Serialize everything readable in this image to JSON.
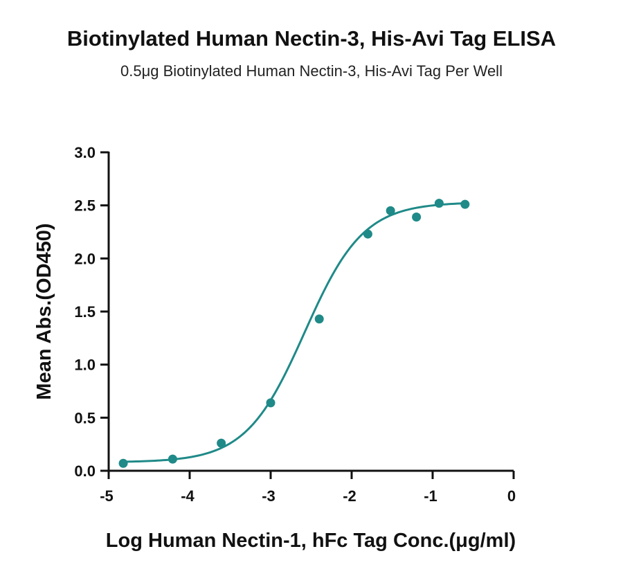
{
  "chart_data": {
    "type": "scatter",
    "title": "Biotinylated Human Nectin-3, His-Avi Tag ELISA",
    "subtitle": "0.5μg Biotinylated Human Nectin-3, His-Avi Tag Per Well",
    "xlabel": "Log Human Nectin-1, hFc Tag Conc.(μg/ml)",
    "ylabel": "Mean Abs.(OD450)",
    "xlim": [
      -5,
      0
    ],
    "ylim": [
      0,
      3.0
    ],
    "xticks": [
      -5,
      -4,
      -3,
      -2,
      -1,
      0
    ],
    "xtick_labels": [
      "-5",
      "-4",
      "-3",
      "-2",
      "-1",
      "0"
    ],
    "yticks": [
      0,
      0.5,
      1.0,
      1.5,
      2.0,
      2.5,
      3.0
    ],
    "ytick_labels": [
      "0.0",
      "0.5",
      "1.0",
      "1.5",
      "2.0",
      "2.5",
      "3.0"
    ],
    "grid": false,
    "color": "#1f8a88",
    "points": [
      {
        "x": -4.82,
        "y": 0.07
      },
      {
        "x": -4.21,
        "y": 0.11
      },
      {
        "x": -3.61,
        "y": 0.26
      },
      {
        "x": -3.0,
        "y": 0.64
      },
      {
        "x": -2.4,
        "y": 1.43
      },
      {
        "x": -1.8,
        "y": 2.23
      },
      {
        "x": -1.52,
        "y": 2.45
      },
      {
        "x": -1.2,
        "y": 2.39
      },
      {
        "x": -0.92,
        "y": 2.52
      },
      {
        "x": -0.6,
        "y": 2.51
      }
    ],
    "fit": {
      "model": "4PL",
      "bottom": 0.08,
      "top": 2.53,
      "logEC50": -2.58,
      "hill": 1.2
    }
  }
}
